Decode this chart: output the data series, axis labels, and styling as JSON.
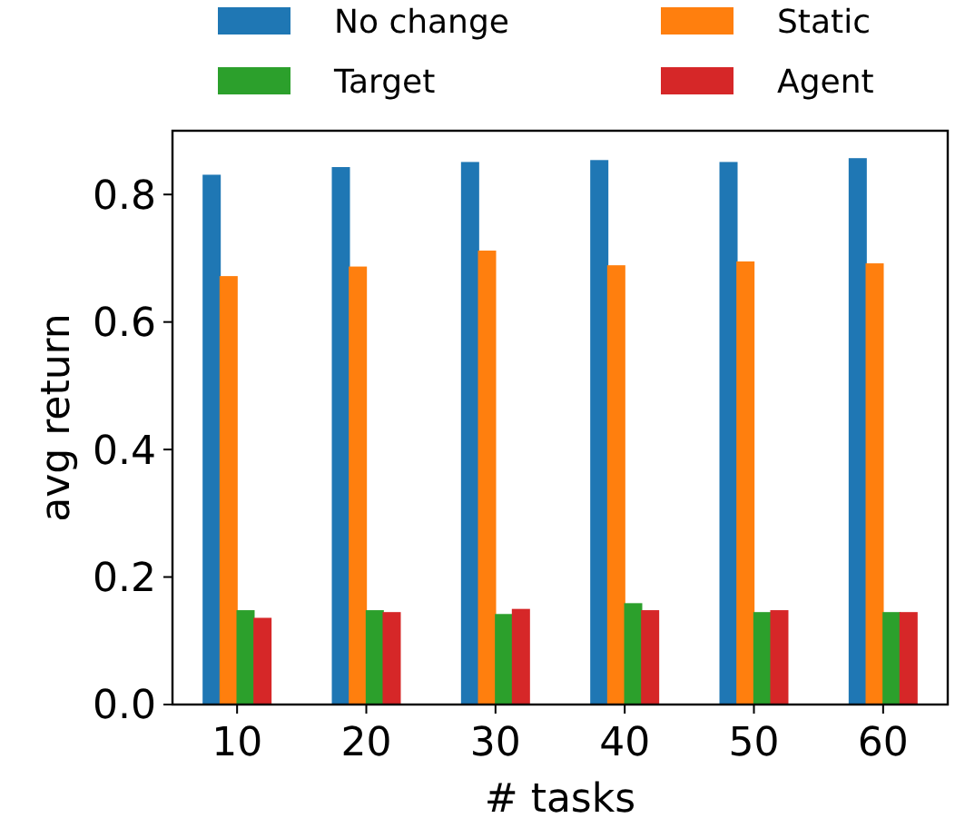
{
  "chart_data": {
    "type": "bar",
    "xlabel": "# tasks",
    "ylabel": "avg return",
    "categories": [
      "10",
      "20",
      "30",
      "40",
      "50",
      "60"
    ],
    "series": [
      {
        "name": "No change",
        "color": "#1f77b4",
        "values": [
          0.831,
          0.843,
          0.851,
          0.854,
          0.851,
          0.857
        ]
      },
      {
        "name": "Static",
        "color": "#ff7f0e",
        "values": [
          0.672,
          0.687,
          0.712,
          0.689,
          0.695,
          0.692
        ]
      },
      {
        "name": "Target",
        "color": "#2ca02c",
        "values": [
          0.148,
          0.148,
          0.142,
          0.159,
          0.145,
          0.145
        ]
      },
      {
        "name": "Agent",
        "color": "#d62728",
        "values": [
          0.136,
          0.145,
          0.15,
          0.148,
          0.148,
          0.145
        ]
      }
    ],
    "ylim": [
      0,
      0.9
    ],
    "yticks": [
      {
        "value": 0,
        "label": "0.0"
      },
      {
        "value": 0.2,
        "label": "0.2"
      },
      {
        "value": 0.4,
        "label": "0.4"
      },
      {
        "value": 0.6,
        "label": "0.6"
      },
      {
        "value": 0.8,
        "label": "0.8"
      }
    ],
    "grid": false,
    "legend": "top"
  }
}
